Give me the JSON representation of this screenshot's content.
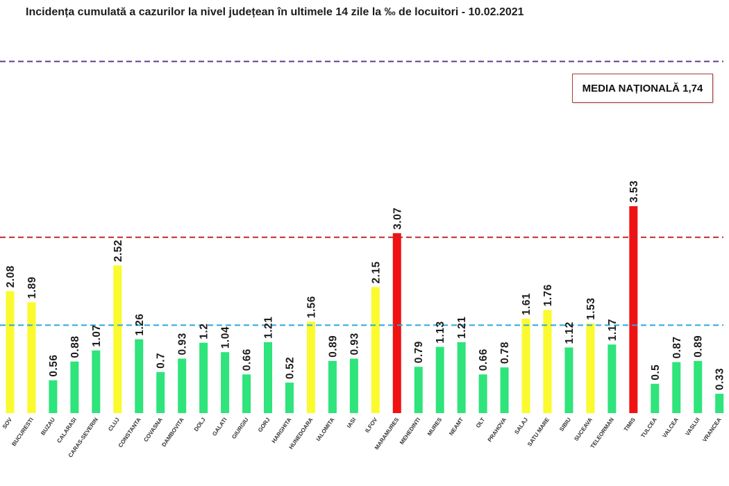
{
  "chart_data": {
    "type": "bar",
    "title": "Incidența cumulată a cazurilor la nivel județean în ultimele 14 zile la ‰ de locuitori - 10.02.2021",
    "xlabel": "",
    "ylabel": "",
    "categories": [
      "SOV",
      "BUCURESTI",
      "BUZAU",
      "CALARASI",
      "CARAS-SEVERIN",
      "CLUJ",
      "CONSTANTA",
      "COVASNA",
      "DAMBOVITA",
      "DOLJ",
      "GALATI",
      "GIURGIU",
      "GORJ",
      "HARGHITA",
      "HUNEDOARA",
      "IALOMITA",
      "IASI",
      "ILFOV",
      "MARAMURES",
      "MEHEDINTI",
      "MURES",
      "NEAMT",
      "OLT",
      "PRAHOVA",
      "SALAJ",
      "SATU MARE",
      "SIBIU",
      "SUCEAVA",
      "TELEORMAN",
      "TIMIS",
      "TULCEA",
      "VALCEA",
      "VASLUI",
      "VRANCEA"
    ],
    "values": [
      2.08,
      1.89,
      0.56,
      0.88,
      1.07,
      2.52,
      1.26,
      0.7,
      0.93,
      1.2,
      1.04,
      0.66,
      1.21,
      0.52,
      1.56,
      0.89,
      0.93,
      2.15,
      3.07,
      0.79,
      1.13,
      1.21,
      0.66,
      0.78,
      1.61,
      1.76,
      1.12,
      1.53,
      1.17,
      3.53,
      0.5,
      0.87,
      0.89,
      0.33
    ],
    "bar_colors": [
      "yellow",
      "yellow",
      "green",
      "green",
      "green",
      "yellow",
      "green",
      "green",
      "green",
      "green",
      "green",
      "green",
      "green",
      "green",
      "yellow",
      "green",
      "green",
      "yellow",
      "red",
      "green",
      "green",
      "green",
      "green",
      "green",
      "yellow",
      "yellow",
      "green",
      "yellow",
      "green",
      "red",
      "green",
      "green",
      "green",
      "green"
    ],
    "palette": {
      "green": "#2ee47b",
      "yellow": "#fafa2e",
      "red": "#ef1212"
    },
    "reference_lines": [
      {
        "value": 6,
        "color": "#5d3b8e"
      },
      {
        "value": 3,
        "color": "#c0282d"
      },
      {
        "value": 1.5,
        "color": "#29a8de"
      }
    ],
    "ylim": [
      0,
      6.1
    ],
    "grid": false,
    "legend": "none",
    "annotation": {
      "text": "MEDIA NAȚIONALĂ 1,74"
    }
  }
}
